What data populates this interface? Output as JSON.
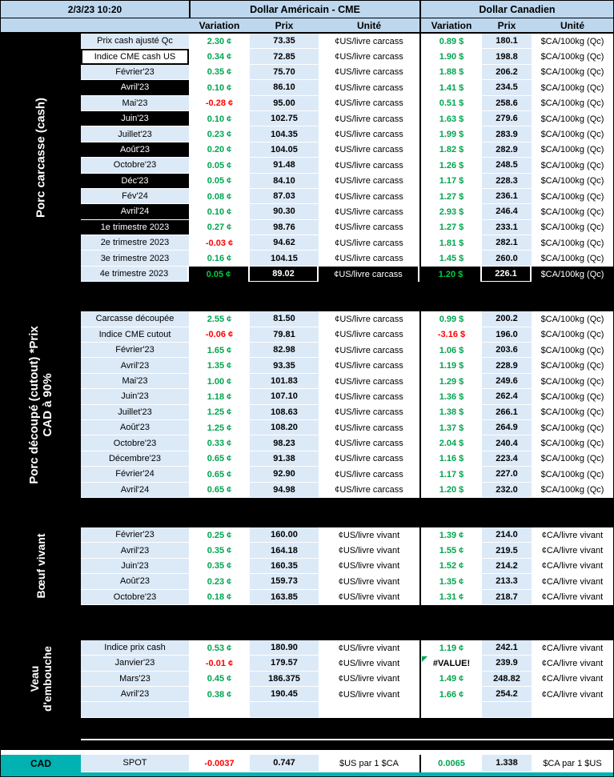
{
  "meta": {
    "timestamp": "2/3/23 10:20"
  },
  "header": {
    "us_title": "Dollar Américain - CME",
    "ca_title": "Dollar Canadien",
    "columns": [
      "Variation",
      "Prix",
      "Unité"
    ]
  },
  "colors": {
    "header_blue": "#BDD7EE",
    "cell_blue": "#DCE9F7",
    "positive_green": "#00A550",
    "negative_red": "#FF0000",
    "section_black": "#000000",
    "cad_teal": "#00B2B2"
  },
  "sections": [
    {
      "label": "Porc carcasse (cash)",
      "rows": [
        {
          "label": "Prix cash ajusté Qc",
          "us_var": "2.30 ¢",
          "us_prix": "73.35",
          "us_unit": "¢US/livre carcass",
          "ca_var": "0.89 $",
          "ca_prix": "180.1",
          "ca_unit": "$CA/100kg (Qc)"
        },
        {
          "label": "Indice CME cash US",
          "label_variant": "boxed",
          "us_var": "0.34 ¢",
          "us_prix": "72.85",
          "us_unit": "¢US/livre carcass",
          "ca_var": "1.90 $",
          "ca_prix": "198.8",
          "ca_unit": "$CA/100kg (Qc)"
        },
        {
          "label": "Février'23",
          "us_var": "0.35 ¢",
          "us_prix": "75.70",
          "us_unit": "¢US/livre carcass",
          "ca_var": "1.88 $",
          "ca_prix": "206.2",
          "ca_unit": "$CA/100kg (Qc)"
        },
        {
          "label": "Avril'23",
          "label_variant": "black",
          "us_var": "0.10 ¢",
          "us_prix": "86.10",
          "us_unit": "¢US/livre carcass",
          "ca_var": "1.41 $",
          "ca_prix": "234.5",
          "ca_unit": "$CA/100kg (Qc)"
        },
        {
          "label": "Mai'23",
          "us_var": "-0.28 ¢",
          "us_prix": "95.00",
          "us_unit": "¢US/livre carcass",
          "ca_var": "0.51 $",
          "ca_prix": "258.6",
          "ca_unit": "$CA/100kg (Qc)"
        },
        {
          "label": "Juin'23",
          "label_variant": "black",
          "us_var": "0.10 ¢",
          "us_prix": "102.75",
          "us_unit": "¢US/livre carcass",
          "ca_var": "1.63 $",
          "ca_prix": "279.6",
          "ca_unit": "$CA/100kg (Qc)"
        },
        {
          "label": "Juillet'23",
          "us_var": "0.23 ¢",
          "us_prix": "104.35",
          "us_unit": "¢US/livre carcass",
          "ca_var": "1.99 $",
          "ca_prix": "283.9",
          "ca_unit": "$CA/100kg (Qc)"
        },
        {
          "label": "Août'23",
          "label_variant": "black",
          "us_var": "0.20 ¢",
          "us_prix": "104.05",
          "us_unit": "¢US/livre carcass",
          "ca_var": "1.82 $",
          "ca_prix": "282.9",
          "ca_unit": "$CA/100kg (Qc)"
        },
        {
          "label": "Octobre'23",
          "us_var": "0.05 ¢",
          "us_prix": "91.48",
          "us_unit": "¢US/livre carcass",
          "ca_var": "1.26 $",
          "ca_prix": "248.5",
          "ca_unit": "$CA/100kg (Qc)"
        },
        {
          "label": "Déc'23",
          "label_variant": "black",
          "us_var": "0.05 ¢",
          "us_prix": "84.10",
          "us_unit": "¢US/livre carcass",
          "ca_var": "1.17 $",
          "ca_prix": "228.3",
          "ca_unit": "$CA/100kg (Qc)"
        },
        {
          "label": "Fév'24",
          "us_var": "0.08 ¢",
          "us_prix": "87.03",
          "us_unit": "¢US/livre carcass",
          "ca_var": "1.27 $",
          "ca_prix": "236.1",
          "ca_unit": "$CA/100kg (Qc)"
        },
        {
          "label": "Avril'24",
          "label_variant": "black",
          "us_var": "0.10 ¢",
          "us_prix": "90.30",
          "us_unit": "¢US/livre carcass",
          "ca_var": "2.93 $",
          "ca_prix": "246.4",
          "ca_unit": "$CA/100kg (Qc)"
        },
        {
          "label": "1e trimestre 2023",
          "label_variant": "black",
          "us_var": "0.27 ¢",
          "us_prix": "98.76",
          "us_unit": "¢US/livre carcass",
          "ca_var": "1.27 $",
          "ca_prix": "233.1",
          "ca_unit": "$CA/100kg (Qc)"
        },
        {
          "label": "2e trimestre 2023",
          "us_var": "-0.03 ¢",
          "us_prix": "94.62",
          "us_unit": "¢US/livre carcass",
          "ca_var": "1.81 $",
          "ca_prix": "282.1",
          "ca_unit": "$CA/100kg (Qc)"
        },
        {
          "label": "3e trimestre 2023",
          "us_var": "0.16 ¢",
          "us_prix": "104.15",
          "us_unit": "¢US/livre carcass",
          "ca_var": "1.45 $",
          "ca_prix": "260.0",
          "ca_unit": "$CA/100kg (Qc)"
        },
        {
          "label": "4e trimestre 2023",
          "row_variant": "black",
          "us_var": "0.05 ¢",
          "us_prix": "89.02",
          "us_unit": "¢US/livre carcass",
          "ca_var": "1.20 $",
          "ca_prix": "226.1",
          "ca_unit": "$CA/100kg (Qc)"
        }
      ]
    },
    {
      "label": "Porc découpé (cutout) *Prix CAD à 90%",
      "rows": [
        {
          "label": "Carcasse découpée",
          "us_var": "2.55 ¢",
          "us_prix": "81.50",
          "us_unit": "¢US/livre carcass",
          "ca_var": "0.99 $",
          "ca_prix": "200.2",
          "ca_unit": "$CA/100kg (Qc)"
        },
        {
          "label": "Indice CME cutout",
          "us_var": "-0.06 ¢",
          "us_prix": "79.81",
          "us_unit": "¢US/livre carcass",
          "ca_var": "-3.16 $",
          "ca_prix": "196.0",
          "ca_unit": "$CA/100kg (Qc)"
        },
        {
          "label": "Février'23",
          "us_var": "1.65 ¢",
          "us_prix": "82.98",
          "us_unit": "¢US/livre carcass",
          "ca_var": "1.06 $",
          "ca_prix": "203.6",
          "ca_unit": "$CA/100kg (Qc)"
        },
        {
          "label": "Avril'23",
          "us_var": "1.35 ¢",
          "us_prix": "93.35",
          "us_unit": "¢US/livre carcass",
          "ca_var": "1.19 $",
          "ca_prix": "228.9",
          "ca_unit": "$CA/100kg (Qc)"
        },
        {
          "label": "Mai'23",
          "us_var": "1.00 ¢",
          "us_prix": "101.83",
          "us_unit": "¢US/livre carcass",
          "ca_var": "1.29 $",
          "ca_prix": "249.6",
          "ca_unit": "$CA/100kg (Qc)"
        },
        {
          "label": "Juin'23",
          "us_var": "1.18 ¢",
          "us_prix": "107.10",
          "us_unit": "¢US/livre carcass",
          "ca_var": "1.36 $",
          "ca_prix": "262.4",
          "ca_unit": "$CA/100kg (Qc)"
        },
        {
          "label": "Juillet'23",
          "us_var": "1.25 ¢",
          "us_prix": "108.63",
          "us_unit": "¢US/livre carcass",
          "ca_var": "1.38 $",
          "ca_prix": "266.1",
          "ca_unit": "$CA/100kg (Qc)"
        },
        {
          "label": "Août'23",
          "us_var": "1.25 ¢",
          "us_prix": "108.20",
          "us_unit": "¢US/livre carcass",
          "ca_var": "1.37 $",
          "ca_prix": "264.9",
          "ca_unit": "$CA/100kg (Qc)"
        },
        {
          "label": "Octobre'23",
          "us_var": "0.33 ¢",
          "us_prix": "98.23",
          "us_unit": "¢US/livre carcass",
          "ca_var": "2.04 $",
          "ca_prix": "240.4",
          "ca_unit": "$CA/100kg (Qc)"
        },
        {
          "label": "Décembre'23",
          "us_var": "0.65 ¢",
          "us_prix": "91.38",
          "us_unit": "¢US/livre carcass",
          "ca_var": "1.16 $",
          "ca_prix": "223.4",
          "ca_unit": "$CA/100kg (Qc)"
        },
        {
          "label": "Février'24",
          "us_var": "0.65 ¢",
          "us_prix": "92.90",
          "us_unit": "¢US/livre carcass",
          "ca_var": "1.17 $",
          "ca_prix": "227.0",
          "ca_unit": "$CA/100kg (Qc)"
        },
        {
          "label": "Avril'24",
          "us_var": "0.65 ¢",
          "us_prix": "94.98",
          "us_unit": "¢US/livre carcass",
          "ca_var": "1.20 $",
          "ca_prix": "232.0",
          "ca_unit": "$CA/100kg (Qc)"
        }
      ]
    },
    {
      "label": "Bœuf vivant",
      "rows": [
        {
          "label": "Février'23",
          "us_var": "0.25 ¢",
          "us_prix": "160.00",
          "us_unit": "¢US/livre vivant",
          "ca_var": "1.39 ¢",
          "ca_prix": "214.0",
          "ca_unit": "¢CA/livre vivant"
        },
        {
          "label": "Avril'23",
          "us_var": "0.35 ¢",
          "us_prix": "164.18",
          "us_unit": "¢US/livre vivant",
          "ca_var": "1.55 ¢",
          "ca_prix": "219.5",
          "ca_unit": "¢CA/livre vivant"
        },
        {
          "label": "Juin'23",
          "us_var": "0.35 ¢",
          "us_prix": "160.35",
          "us_unit": "¢US/livre vivant",
          "ca_var": "1.52 ¢",
          "ca_prix": "214.2",
          "ca_unit": "¢CA/livre vivant"
        },
        {
          "label": "Août'23",
          "us_var": "0.23 ¢",
          "us_prix": "159.73",
          "us_unit": "¢US/livre vivant",
          "ca_var": "1.35 ¢",
          "ca_prix": "213.3",
          "ca_unit": "¢CA/livre vivant"
        },
        {
          "label": "Octobre'23",
          "us_var": "0.18 ¢",
          "us_prix": "163.85",
          "us_unit": "¢US/livre vivant",
          "ca_var": "1.31 ¢",
          "ca_prix": "218.7",
          "ca_unit": "¢CA/livre vivant"
        }
      ]
    },
    {
      "label": "Veau d'embouche",
      "rows": [
        {
          "label": "Indice prix cash",
          "us_var": "0.53 ¢",
          "us_prix": "180.90",
          "us_unit": "¢US/livre vivant",
          "ca_var": "1.19 ¢",
          "ca_prix": "242.1",
          "ca_unit": "¢CA/livre vivant"
        },
        {
          "label": "Janvier'23",
          "us_var": "-0.01 ¢",
          "us_prix": "179.57",
          "us_unit": "¢US/livre vivant",
          "ca_var": "#VALUE!",
          "ca_prix": "239.9",
          "ca_unit": "¢CA/livre vivant"
        },
        {
          "label": "Mars'23",
          "us_var": "0.45 ¢",
          "us_prix": "186.375",
          "us_unit": "¢US/livre vivant",
          "ca_var": "1.49 ¢",
          "ca_prix": "248.82",
          "ca_unit": "¢CA/livre vivant"
        },
        {
          "label": "Avril'23",
          "us_var": "0.38 ¢",
          "us_prix": "190.45",
          "us_unit": "¢US/livre vivant",
          "ca_var": "1.66 ¢",
          "ca_prix": "254.2",
          "ca_unit": "¢CA/livre vivant"
        },
        {
          "label": "",
          "us_var": "",
          "us_prix": "",
          "us_unit": "",
          "ca_var": "",
          "ca_prix": "",
          "ca_unit": ""
        }
      ]
    }
  ],
  "footer": {
    "section_label": "CAD",
    "row": {
      "label": "SPOT",
      "us_var": "-0.0037",
      "us_prix": "0.747",
      "us_unit": "$US par 1 $CA",
      "ca_var": "0.0065",
      "ca_prix": "1.338",
      "ca_unit": "$CA par 1 $US"
    }
  }
}
